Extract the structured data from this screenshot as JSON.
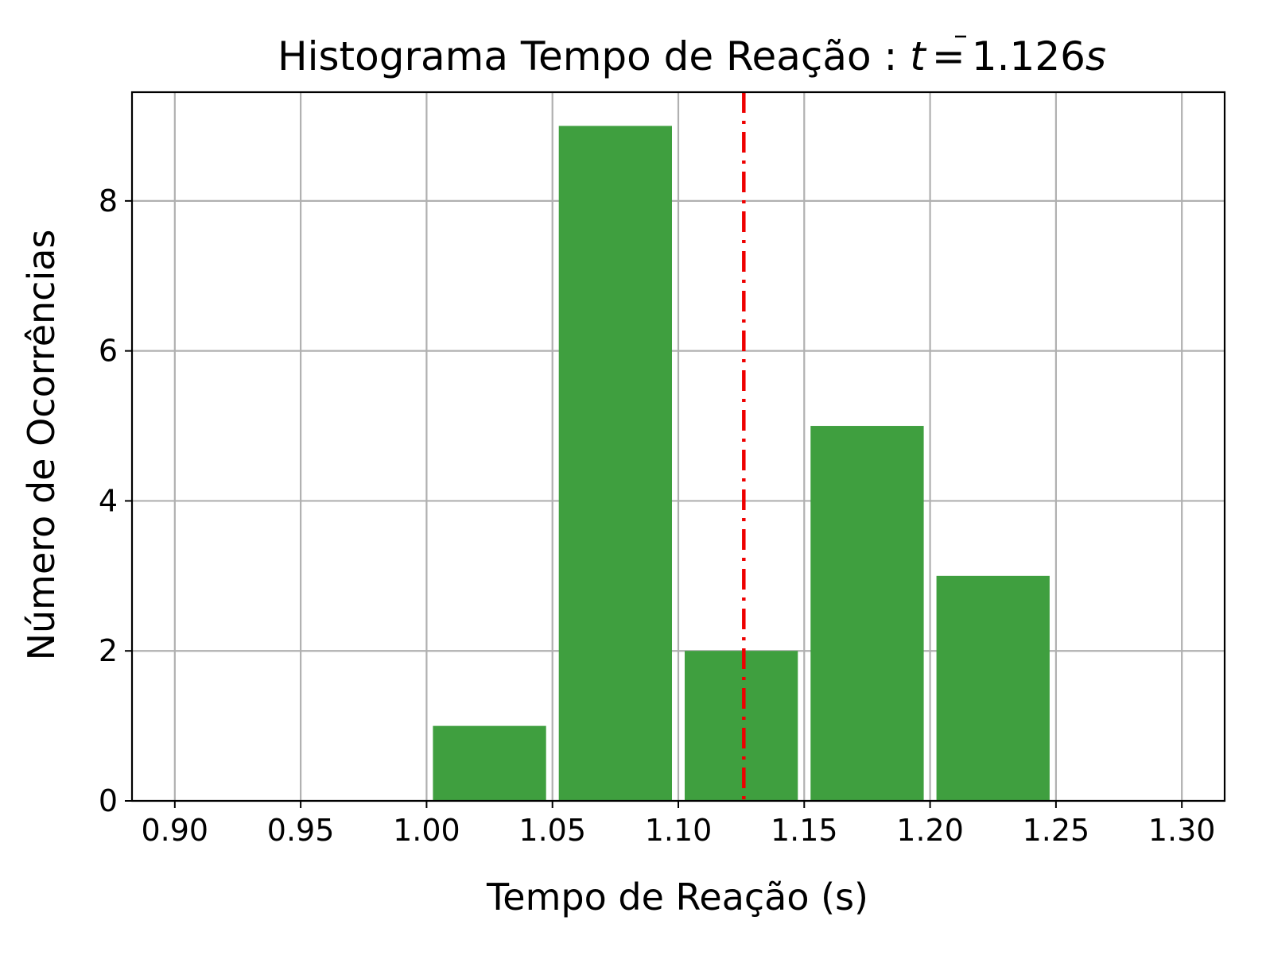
{
  "chart_data": {
    "type": "bar",
    "title": "Histograma Tempo de Reação : t̄ = 1.126s",
    "title_parts": {
      "prefix": "Histograma Tempo de Reação : ",
      "symbol": "t",
      "equals": "=",
      "value": "1.126",
      "unit": "s"
    },
    "xlabel": "Tempo de Reação (s)",
    "ylabel": "Número de Ocorrências",
    "xlim": [
      0.883,
      1.317
    ],
    "ylim": [
      0,
      9.45
    ],
    "grid": true,
    "bin_width": 0.05,
    "bars": [
      {
        "left": 1.0,
        "right": 1.05,
        "value": 1
      },
      {
        "left": 1.05,
        "right": 1.1,
        "value": 9
      },
      {
        "left": 1.1,
        "right": 1.15,
        "value": 2
      },
      {
        "left": 1.15,
        "right": 1.2,
        "value": 5
      },
      {
        "left": 1.2,
        "right": 1.25,
        "value": 3
      }
    ],
    "mean": 1.126,
    "x_ticks": [
      {
        "value": 0.9,
        "label": "0.90"
      },
      {
        "value": 0.95,
        "label": "0.95"
      },
      {
        "value": 1.0,
        "label": "1.00"
      },
      {
        "value": 1.05,
        "label": "1.05"
      },
      {
        "value": 1.1,
        "label": "1.10"
      },
      {
        "value": 1.15,
        "label": "1.15"
      },
      {
        "value": 1.2,
        "label": "1.20"
      },
      {
        "value": 1.25,
        "label": "1.25"
      },
      {
        "value": 1.3,
        "label": "1.30"
      }
    ],
    "y_ticks": [
      {
        "value": 0,
        "label": "0"
      },
      {
        "value": 2,
        "label": "2"
      },
      {
        "value": 4,
        "label": "4"
      },
      {
        "value": 6,
        "label": "6"
      },
      {
        "value": 8,
        "label": "8"
      }
    ],
    "colors": {
      "bar": "#3f9f3f",
      "mean_line": "#ee0000",
      "grid": "#b0b0b0"
    }
  }
}
